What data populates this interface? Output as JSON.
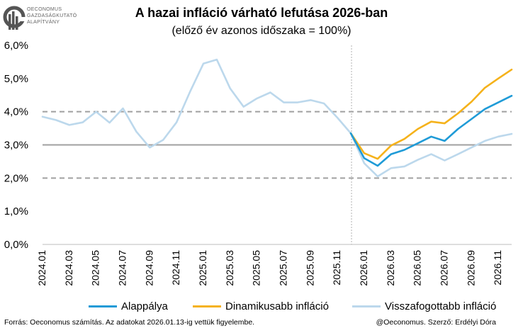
{
  "header": {
    "title": "A hazai infláció várható lefutása 2026-ban",
    "subtitle": "(előző év azonos időszaka = 100%)"
  },
  "logo": {
    "lines": [
      "OECONOMUS",
      "GAZDASÁGKUTATÓ",
      "ALAPÍTVÁNY"
    ]
  },
  "footer": {
    "source": "Forrás: Oeconomus számítás. Az adatokat 2026.01.13-ig vettük figyelembe.",
    "credit": "@Oeconomus. Szerző: Erdélyi Dóra"
  },
  "colors": {
    "alap": "#1f9bd7",
    "dinamikus": "#f5b21b",
    "visszafogott": "#bcd8ec",
    "ref_line": "#a0a0a0"
  },
  "chart_data": {
    "type": "line",
    "ylim": [
      0,
      6
    ],
    "y_ticks": [
      "0,0%",
      "1,0%",
      "2,0%",
      "3,0%",
      "4,0%",
      "5,0%",
      "6,0%"
    ],
    "x_tick_labels": [
      "2024.01",
      "2024.03",
      "2024.05",
      "2024.07",
      "2024.09",
      "2024.11",
      "2025.01",
      "2025.03",
      "2025.05",
      "2025.07",
      "2025.09",
      "2025.11",
      "2026.01",
      "2026.03",
      "2026.05",
      "2026.07",
      "2026.09",
      "2026.11"
    ],
    "months": [
      "2024.01",
      "2024.02",
      "2024.03",
      "2024.04",
      "2024.05",
      "2024.06",
      "2024.07",
      "2024.08",
      "2024.09",
      "2024.10",
      "2024.11",
      "2024.12",
      "2025.01",
      "2025.02",
      "2025.03",
      "2025.04",
      "2025.05",
      "2025.06",
      "2025.07",
      "2025.08",
      "2025.09",
      "2025.10",
      "2025.11",
      "2025.12",
      "2026.01",
      "2026.02",
      "2026.03",
      "2026.04",
      "2026.05",
      "2026.06",
      "2026.07",
      "2026.08",
      "2026.09",
      "2026.10",
      "2026.11",
      "2026.12"
    ],
    "reference_lines": [
      {
        "y": 2.0,
        "style": "dashed"
      },
      {
        "y": 3.0,
        "style": "solid"
      },
      {
        "y": 4.0,
        "style": "dashed"
      }
    ],
    "series": [
      {
        "name": "Visszafogottabb infláció",
        "color_key": "visszafogott",
        "start_index": 0,
        "values": [
          3.85,
          3.75,
          3.6,
          3.68,
          4.0,
          3.67,
          4.1,
          3.4,
          2.92,
          3.15,
          3.68,
          4.6,
          5.45,
          5.57,
          4.7,
          4.15,
          4.4,
          4.58,
          4.28,
          4.28,
          4.35,
          4.25,
          3.82,
          3.35,
          2.45,
          2.05,
          2.3,
          2.35,
          2.55,
          2.72,
          2.53,
          2.72,
          2.92,
          3.12,
          3.25,
          3.33
        ]
      },
      {
        "name": "Dinamikusabb infláció",
        "color_key": "dinamikus",
        "start_index": 23,
        "values": [
          3.35,
          2.75,
          2.58,
          2.98,
          3.18,
          3.48,
          3.7,
          3.65,
          3.95,
          4.3,
          4.72,
          5.0,
          5.27
        ]
      },
      {
        "name": "Alappálya",
        "color_key": "alap",
        "start_index": 23,
        "values": [
          3.35,
          2.6,
          2.37,
          2.72,
          2.85,
          3.05,
          3.25,
          3.12,
          3.48,
          3.78,
          4.08,
          4.28,
          4.48
        ]
      }
    ],
    "forecast_divider_after": "2025.12",
    "legend": {
      "placement": "bottom",
      "items": [
        {
          "label": "Alappálya",
          "color_key": "alap"
        },
        {
          "label": "Dinamikusabb infláció",
          "color_key": "dinamikus"
        },
        {
          "label": "Visszafogottabb infláció",
          "color_key": "visszafogott"
        }
      ]
    }
  }
}
